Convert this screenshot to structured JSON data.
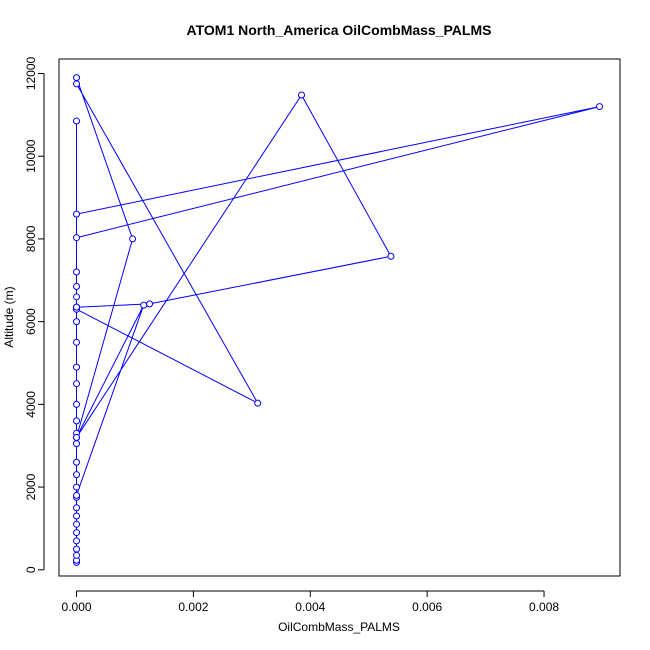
{
  "chart_data": {
    "type": "line",
    "title": "ATOM1 North_America OilCombMass_PALMS",
    "xlabel": "OilCombMass_PALMS",
    "ylabel": "Altitude (m)",
    "xlim": [
      -0.0003,
      0.0093
    ],
    "ylim": [
      -150,
      12350
    ],
    "x_ticks": [
      0,
      0.002,
      0.004,
      0.006,
      0.008
    ],
    "x_tick_labels": [
      "0.000",
      "0.002",
      "0.004",
      "0.006",
      "0.008"
    ],
    "y_ticks": [
      0,
      2000,
      4000,
      6000,
      8000,
      10000,
      12000
    ],
    "y_tick_labels": [
      "0",
      "2000",
      "4000",
      "6000",
      "8000",
      "10000",
      "12000"
    ],
    "grid": false,
    "legend": "none",
    "marker": "open-circle",
    "line_color": "#0000ff",
    "series": [
      {
        "x": [
          0.0,
          0.0,
          0.0,
          0.0,
          0.0,
          0.0,
          0.0,
          0.0,
          0.0,
          0.0,
          0.0,
          0.0,
          0.0,
          0.0,
          0.0,
          0.0,
          0.0,
          0.0,
          0.0,
          0.0,
          0.0,
          0.0,
          0.0,
          0.0,
          0.0,
          0.00115,
          0.0,
          0.00096,
          0.0,
          0.0,
          0.0031,
          0.0,
          0.0,
          0.00385,
          0.00538,
          0.00125,
          0.0,
          0.0,
          0.0,
          0.00895,
          0.0,
          0.0
        ],
        "y": [
          180,
          230,
          350,
          500,
          700,
          900,
          1100,
          1300,
          1500,
          1750,
          2000,
          2300,
          2600,
          3050,
          3300,
          3600,
          4000,
          4500,
          4900,
          5500,
          6000,
          6350,
          6600,
          6850,
          1800,
          6400,
          3200,
          8000,
          11900,
          11750,
          4030,
          6300,
          3200,
          11480,
          7580,
          6430,
          6350,
          7200,
          8600,
          11200,
          8030,
          10850
        ]
      }
    ]
  }
}
